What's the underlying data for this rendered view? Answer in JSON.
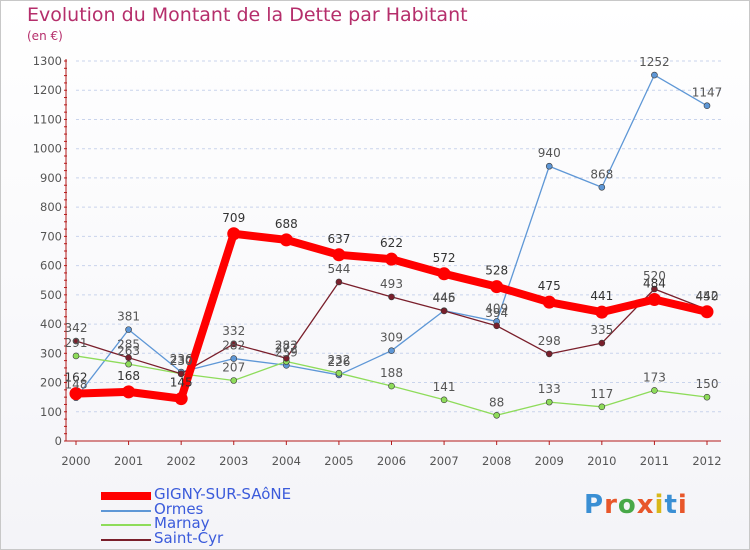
{
  "title": "Evolution du Montant de la Dette par Habitant",
  "subtitle": "(en €)",
  "logo": {
    "text": "Proxiti",
    "colors": [
      "#3a8fd4",
      "#e8562a",
      "#48a848",
      "#e8562a",
      "#d8b81a",
      "#3a8fd4",
      "#e8562a"
    ]
  },
  "colors": {
    "grid": "#c9d4ec",
    "axis": "#b41a1a",
    "label": "#555555"
  },
  "chart_data": {
    "type": "line",
    "title": "Evolution du Montant de la Dette par Habitant",
    "subtitle": "(en €)",
    "x": [
      "2000",
      "2001",
      "2002",
      "2003",
      "2004",
      "2005",
      "2006",
      "2007",
      "2008",
      "2009",
      "2010",
      "2011",
      "2012"
    ],
    "ylim": [
      0,
      1300
    ],
    "yticks": [
      0,
      100,
      200,
      300,
      400,
      500,
      600,
      700,
      800,
      900,
      1000,
      1100,
      1200,
      1300
    ],
    "grid": "horizontal dashed",
    "legend_position": "bottom-left",
    "series": [
      {
        "name": "GIGNY-SUR-SAôNE",
        "color": "#ff0000",
        "width": 8,
        "dot": 6.5,
        "labelColor": "#333333",
        "values": [
          162,
          168,
          145,
          709,
          688,
          637,
          622,
          572,
          528,
          475,
          441,
          484,
          442
        ]
      },
      {
        "name": "Ormes",
        "color": "#5e97d6",
        "width": 1.3,
        "dot": 3,
        "labelColor": "#555555",
        "values": [
          148,
          381,
          236,
          282,
          259,
          226,
          309,
          446,
          409,
          940,
          868,
          1252,
          1147
        ]
      },
      {
        "name": "Marnay",
        "color": "#8edc5a",
        "width": 1.3,
        "dot": 3,
        "labelColor": "#555555",
        "values": [
          291,
          263,
          230,
          207,
          272,
          232,
          188,
          141,
          88,
          133,
          117,
          173,
          150
        ]
      },
      {
        "name": "Saint-Cyr",
        "color": "#7a1f2b",
        "width": 1.3,
        "dot": 3,
        "labelColor": "#555555",
        "values": [
          342,
          285,
          230,
          332,
          283,
          544,
          493,
          445,
          394,
          298,
          335,
          520,
          450
        ]
      }
    ]
  }
}
